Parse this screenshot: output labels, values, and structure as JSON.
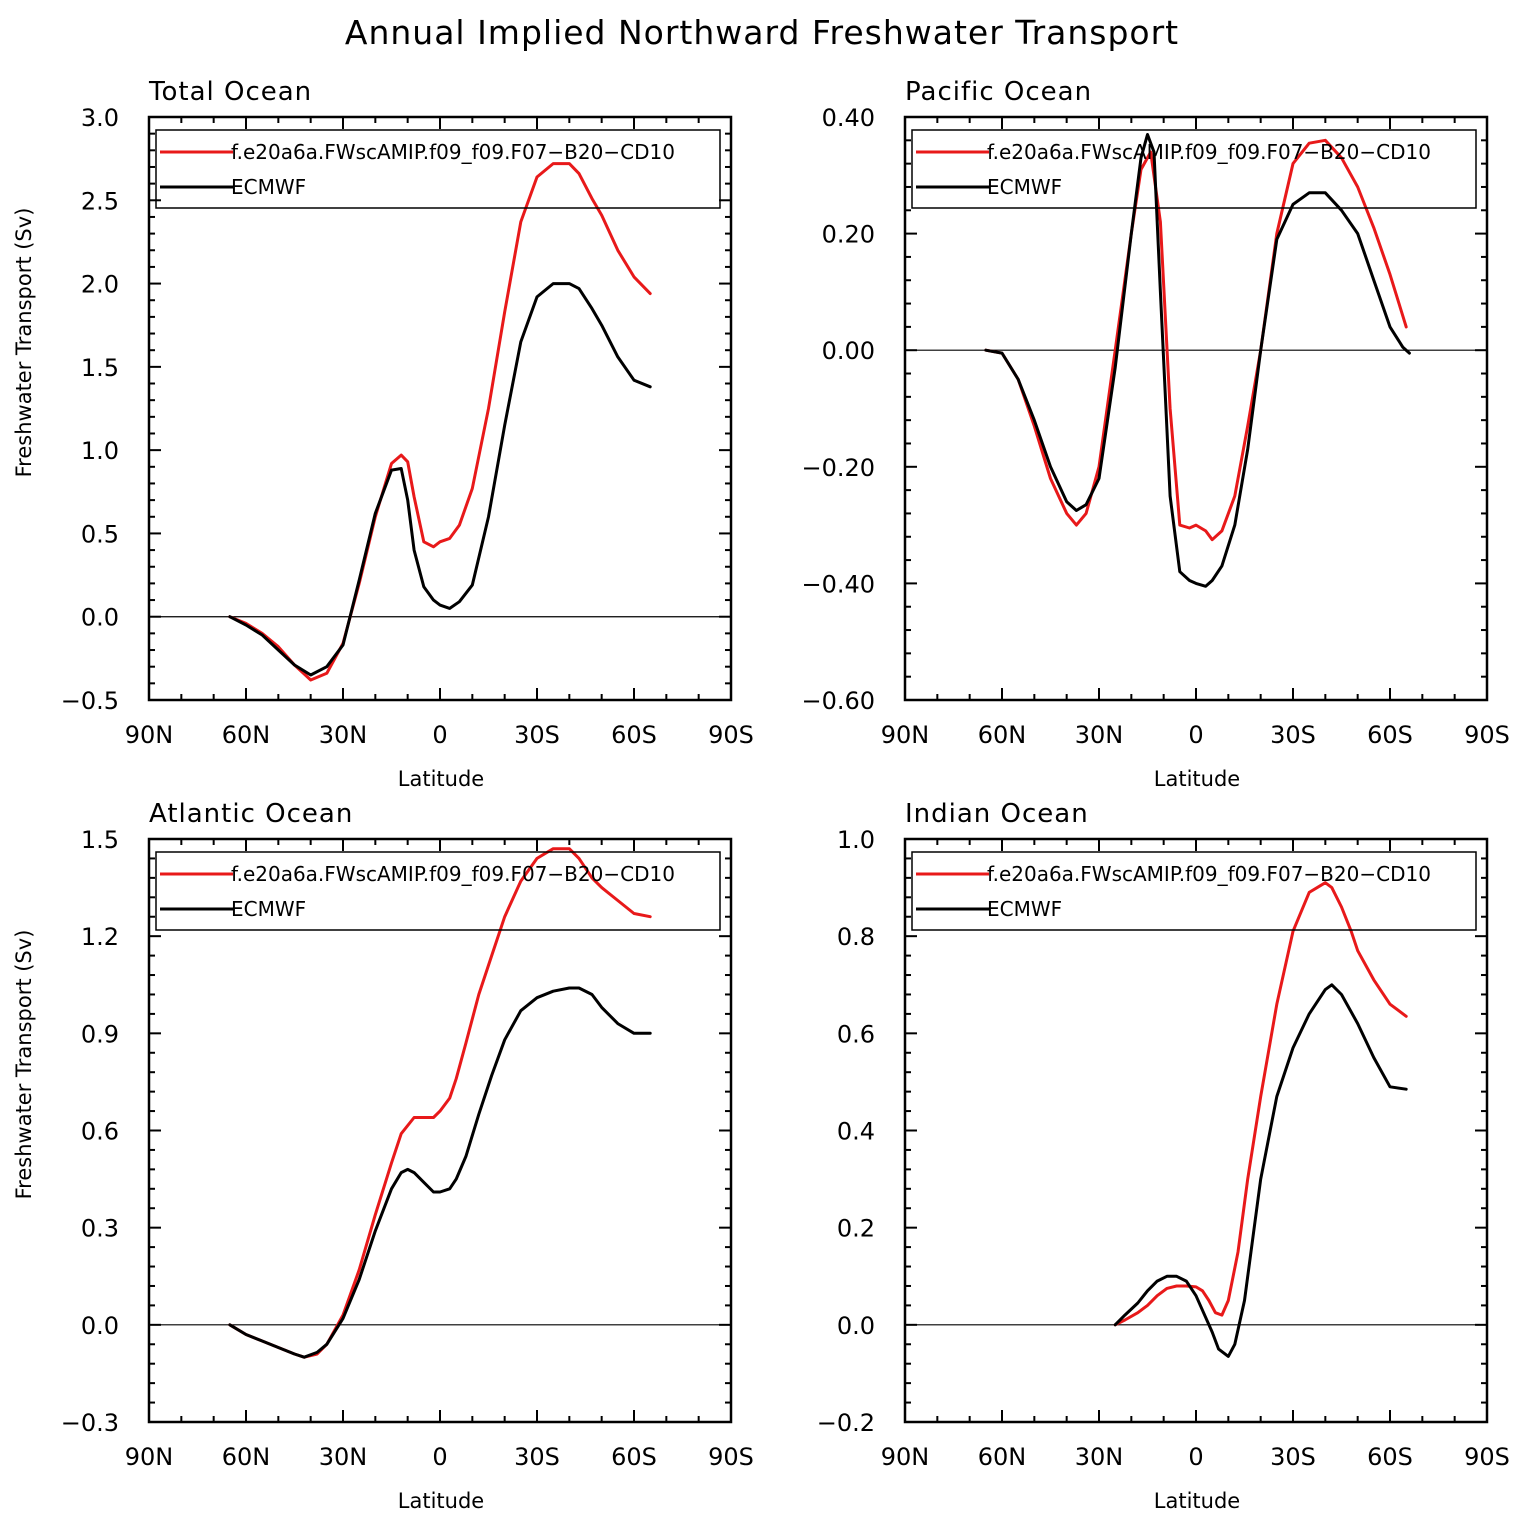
{
  "title": "Annual Implied Northward Freshwater Transport",
  "chart_data": [
    {
      "type": "line",
      "title": "Total Ocean",
      "xlabel": "Latitude",
      "ylabel": "Freshwater Transport (Sv)",
      "xlim": [
        90,
        -90
      ],
      "ylim": [
        -0.5,
        3.0
      ],
      "x_ticks": [
        90,
        60,
        30,
        0,
        -30,
        -60,
        -90
      ],
      "x_tick_labels": [
        "90N",
        "60N",
        "30N",
        "0",
        "30S",
        "60S",
        "90S"
      ],
      "y_ticks": [
        -0.5,
        0,
        0.5,
        1,
        1.5,
        2,
        2.5,
        3
      ],
      "y_tick_labels": [
        "−0.5",
        "0.0",
        "0.5",
        "1.0",
        "1.5",
        "2.0",
        "2.5",
        "3.0"
      ],
      "legend_position": "top",
      "series": [
        {
          "name": "f.e20a6a.FWscAMIP.f09_f09.F07−B20−CD10",
          "color": "#e8191a",
          "x": [
            65,
            60,
            55,
            50,
            45,
            40,
            35,
            30,
            25,
            20,
            15,
            12,
            10,
            8,
            5,
            2,
            0,
            -3,
            -6,
            -10,
            -15,
            -20,
            -25,
            -30,
            -35,
            -40,
            -43,
            -47,
            -50,
            -55,
            -60,
            -65
          ],
          "y": [
            0,
            -0.04,
            -0.1,
            -0.18,
            -0.29,
            -0.38,
            -0.34,
            -0.16,
            0.2,
            0.6,
            0.92,
            0.97,
            0.93,
            0.72,
            0.45,
            0.42,
            0.45,
            0.47,
            0.55,
            0.77,
            1.25,
            1.83,
            2.37,
            2.64,
            2.72,
            2.72,
            2.66,
            2.51,
            2.41,
            2.2,
            2.04,
            1.94
          ]
        },
        {
          "name": "ECMWF",
          "color": "#000000",
          "x": [
            65,
            60,
            55,
            50,
            45,
            40,
            35,
            30,
            25,
            20,
            15,
            12,
            10,
            8,
            5,
            2,
            0,
            -3,
            -6,
            -10,
            -15,
            -20,
            -25,
            -30,
            -35,
            -40,
            -43,
            -47,
            -50,
            -55,
            -60,
            -65
          ],
          "y": [
            0,
            -0.05,
            -0.11,
            -0.2,
            -0.29,
            -0.35,
            -0.3,
            -0.17,
            0.22,
            0.62,
            0.88,
            0.89,
            0.7,
            0.4,
            0.18,
            0.1,
            0.07,
            0.05,
            0.09,
            0.19,
            0.6,
            1.15,
            1.65,
            1.92,
            2.0,
            2.0,
            1.97,
            1.85,
            1.75,
            1.56,
            1.42,
            1.38
          ]
        }
      ]
    },
    {
      "type": "line",
      "title": "Pacific Ocean",
      "xlabel": "Latitude",
      "ylabel": "",
      "xlim": [
        90,
        -90
      ],
      "ylim": [
        -0.6,
        0.4
      ],
      "x_ticks": [
        90,
        60,
        30,
        0,
        -30,
        -60,
        -90
      ],
      "x_tick_labels": [
        "90N",
        "60N",
        "30N",
        "0",
        "30S",
        "60S",
        "90S"
      ],
      "y_ticks": [
        -0.6,
        -0.4,
        -0.2,
        0,
        0.2,
        0.4
      ],
      "y_tick_labels": [
        "−0.60",
        "−0.40",
        "−0.20",
        "0.00",
        "0.20",
        "0.40"
      ],
      "legend_position": "top",
      "series": [
        {
          "name": "f.e20a6a.FWscAMIP.f09_f09.F07−B20−CD10",
          "color": "#e8191a",
          "x": [
            65,
            60,
            55,
            50,
            45,
            40,
            37,
            34,
            30,
            25,
            20,
            17,
            14,
            11,
            8,
            5,
            2,
            0,
            -3,
            -5,
            -8,
            -12,
            -16,
            -20,
            -25,
            -30,
            -35,
            -40,
            -45,
            -50,
            -55,
            -60,
            -65
          ],
          "y": [
            0,
            -0.005,
            -0.05,
            -0.13,
            -0.22,
            -0.28,
            -0.3,
            -0.28,
            -0.2,
            0.0,
            0.2,
            0.31,
            0.34,
            0.22,
            -0.1,
            -0.3,
            -0.305,
            -0.3,
            -0.31,
            -0.325,
            -0.31,
            -0.25,
            -0.13,
            0.0,
            0.2,
            0.32,
            0.355,
            0.36,
            0.33,
            0.28,
            0.21,
            0.13,
            0.04
          ]
        },
        {
          "name": "ECMWF",
          "color": "#000000",
          "x": [
            65,
            60,
            55,
            50,
            45,
            40,
            37,
            34,
            30,
            25,
            20,
            17,
            15,
            13,
            11,
            8,
            5,
            2,
            0,
            -3,
            -5,
            -8,
            -12,
            -16,
            -20,
            -25,
            -30,
            -35,
            -40,
            -45,
            -50,
            -55,
            -60,
            -64,
            -66
          ],
          "y": [
            0,
            -0.005,
            -0.05,
            -0.12,
            -0.2,
            -0.26,
            -0.275,
            -0.265,
            -0.22,
            -0.03,
            0.2,
            0.33,
            0.37,
            0.34,
            0.1,
            -0.25,
            -0.38,
            -0.395,
            -0.4,
            -0.405,
            -0.395,
            -0.37,
            -0.3,
            -0.17,
            0.0,
            0.19,
            0.25,
            0.27,
            0.27,
            0.24,
            0.2,
            0.12,
            0.04,
            0.005,
            -0.005
          ]
        }
      ]
    },
    {
      "type": "line",
      "title": "Atlantic Ocean",
      "xlabel": "Latitude",
      "ylabel": "Freshwater Transport (Sv)",
      "xlim": [
        90,
        -90
      ],
      "ylim": [
        -0.3,
        1.5
      ],
      "x_ticks": [
        90,
        60,
        30,
        0,
        -30,
        -60,
        -90
      ],
      "x_tick_labels": [
        "90N",
        "60N",
        "30N",
        "0",
        "30S",
        "60S",
        "90S"
      ],
      "y_ticks": [
        -0.3,
        0,
        0.3,
        0.6,
        0.9,
        1.2,
        1.5
      ],
      "y_tick_labels": [
        "−0.3",
        "0.0",
        "0.3",
        "0.6",
        "0.9",
        "1.2",
        "1.5"
      ],
      "legend_position": "top",
      "series": [
        {
          "name": "f.e20a6a.FWscAMIP.f09_f09.F07−B20−CD10",
          "color": "#e8191a",
          "x": [
            65,
            60,
            55,
            50,
            45,
            42,
            38,
            35,
            30,
            25,
            20,
            15,
            12,
            8,
            5,
            2,
            0,
            -3,
            -5,
            -8,
            -12,
            -16,
            -20,
            -25,
            -30,
            -35,
            -40,
            -43,
            -47,
            -50,
            -55,
            -60,
            -65
          ],
          "y": [
            0,
            -0.03,
            -0.05,
            -0.07,
            -0.09,
            -0.1,
            -0.09,
            -0.06,
            0.03,
            0.17,
            0.34,
            0.5,
            0.59,
            0.64,
            0.64,
            0.64,
            0.66,
            0.7,
            0.76,
            0.87,
            1.02,
            1.14,
            1.26,
            1.37,
            1.44,
            1.47,
            1.47,
            1.44,
            1.38,
            1.35,
            1.31,
            1.27,
            1.26
          ]
        },
        {
          "name": "ECMWF",
          "color": "#000000",
          "x": [
            65,
            60,
            55,
            50,
            45,
            42,
            38,
            35,
            30,
            25,
            20,
            15,
            12,
            10,
            8,
            5,
            2,
            0,
            -3,
            -5,
            -8,
            -12,
            -16,
            -20,
            -25,
            -30,
            -35,
            -40,
            -43,
            -47,
            -50,
            -55,
            -60,
            -65
          ],
          "y": [
            0,
            -0.03,
            -0.05,
            -0.07,
            -0.09,
            -0.1,
            -0.085,
            -0.06,
            0.02,
            0.14,
            0.29,
            0.42,
            0.47,
            0.48,
            0.47,
            0.44,
            0.41,
            0.41,
            0.42,
            0.45,
            0.52,
            0.65,
            0.77,
            0.88,
            0.97,
            1.01,
            1.03,
            1.04,
            1.04,
            1.02,
            0.98,
            0.93,
            0.9,
            0.9
          ]
        }
      ]
    },
    {
      "type": "line",
      "title": "Indian Ocean",
      "xlabel": "Latitude",
      "ylabel": "",
      "xlim": [
        90,
        -90
      ],
      "ylim": [
        -0.2,
        1.0
      ],
      "x_ticks": [
        90,
        60,
        30,
        0,
        -30,
        -60,
        -90
      ],
      "x_tick_labels": [
        "90N",
        "60N",
        "30N",
        "0",
        "30S",
        "60S",
        "90S"
      ],
      "y_ticks": [
        -0.2,
        0,
        0.2,
        0.4,
        0.6,
        0.8,
        1.0
      ],
      "y_tick_labels": [
        "−0.2",
        "0.0",
        "0.2",
        "0.4",
        "0.6",
        "0.8",
        "1.0"
      ],
      "legend_position": "top",
      "series": [
        {
          "name": "f.e20a6a.FWscAMIP.f09_f09.F07−B20−CD10",
          "color": "#e8191a",
          "x": [
            25,
            22,
            18,
            15,
            12,
            9,
            6,
            3,
            0,
            -2,
            -4,
            -6,
            -8,
            -10,
            -13,
            -16,
            -20,
            -25,
            -30,
            -35,
            -40,
            -42,
            -45,
            -48,
            -50,
            -55,
            -60,
            -65
          ],
          "y": [
            0,
            0.01,
            0.025,
            0.04,
            0.06,
            0.075,
            0.08,
            0.08,
            0.078,
            0.07,
            0.05,
            0.025,
            0.02,
            0.05,
            0.15,
            0.3,
            0.47,
            0.66,
            0.81,
            0.89,
            0.91,
            0.9,
            0.86,
            0.81,
            0.77,
            0.71,
            0.66,
            0.635
          ]
        },
        {
          "name": "ECMWF",
          "color": "#000000",
          "x": [
            25,
            22,
            18,
            15,
            12,
            9,
            6,
            3,
            0,
            -2,
            -5,
            -7,
            -10,
            -12,
            -15,
            -18,
            -20,
            -25,
            -30,
            -35,
            -40,
            -42,
            -45,
            -50,
            -55,
            -60,
            -65
          ],
          "y": [
            0,
            0.02,
            0.045,
            0.07,
            0.09,
            0.1,
            0.1,
            0.09,
            0.06,
            0.03,
            -0.015,
            -0.05,
            -0.065,
            -0.04,
            0.05,
            0.2,
            0.3,
            0.47,
            0.57,
            0.64,
            0.69,
            0.7,
            0.68,
            0.62,
            0.55,
            0.49,
            0.485
          ]
        }
      ]
    }
  ]
}
